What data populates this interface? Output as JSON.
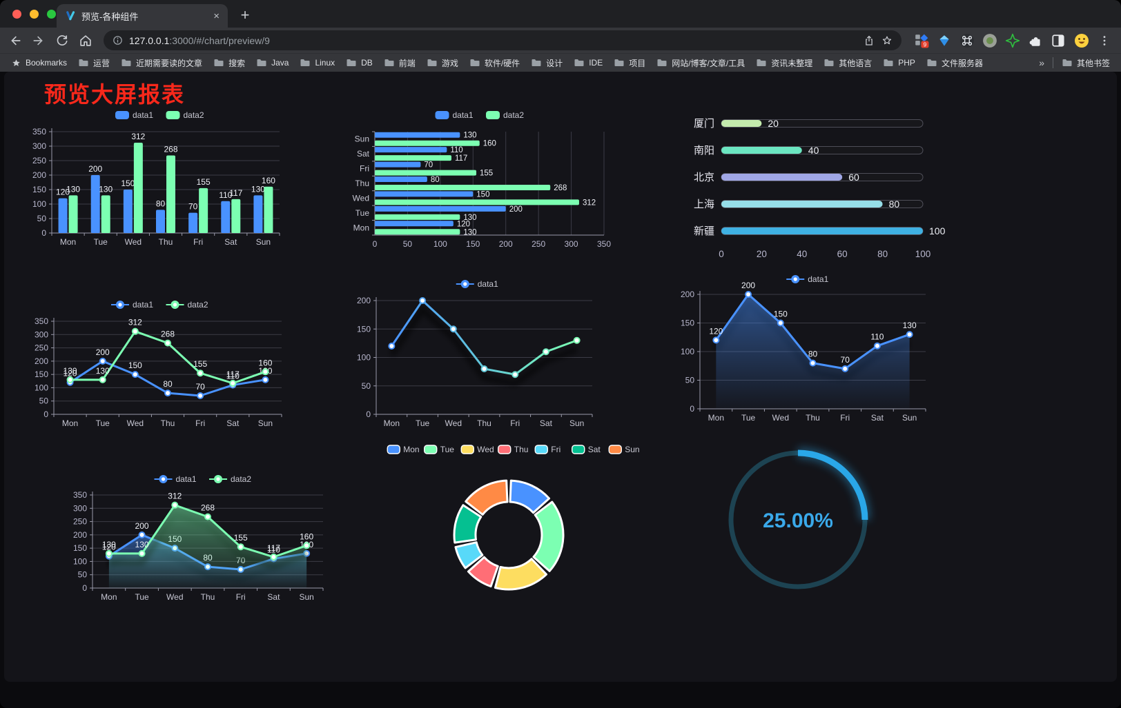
{
  "browser": {
    "tab": {
      "title": "预览-各种组件"
    },
    "url": {
      "host": "127.0.0.1",
      "rest": ":3000/#/chart/preview/9"
    },
    "new_tab_label": "+",
    "close_label": "×",
    "extension_badge": "9",
    "bookmarks_bar": {
      "root_label": "Bookmarks",
      "folders": [
        "运营",
        "近期需要读的文章",
        "搜索",
        "Java",
        "Linux",
        "DB",
        "前端",
        "游戏",
        "软件/硬件",
        "设计",
        "IDE",
        "项目",
        "网站/博客/文章/工具",
        "资讯未整理",
        "其他语言",
        "PHP",
        "文件服务器"
      ],
      "overflow": "»",
      "other": "其他书签"
    }
  },
  "page": {
    "title": "预览大屏报表",
    "title_color": "#f8281b"
  },
  "chart_data": [
    {
      "id": "grouped-bar",
      "type": "bar",
      "legend_position": "top",
      "categories": [
        "Mon",
        "Tue",
        "Wed",
        "Thu",
        "Fri",
        "Sat",
        "Sun"
      ],
      "series": [
        {
          "name": "data1",
          "color": "#4992ff",
          "values": [
            120,
            200,
            150,
            80,
            70,
            110,
            130
          ]
        },
        {
          "name": "data2",
          "color": "#7cffb2",
          "values": [
            130,
            130,
            312,
            268,
            155,
            117,
            160
          ]
        }
      ],
      "ylim": [
        0,
        350
      ],
      "ytick_step": 50,
      "grid": true,
      "value_labels": true
    },
    {
      "id": "horizontal-bar",
      "type": "bar",
      "orientation": "horizontal",
      "legend_position": "top",
      "categories": [
        "Mon",
        "Tue",
        "Wed",
        "Thu",
        "Fri",
        "Sat",
        "Sun"
      ],
      "series": [
        {
          "name": "data1",
          "color": "#4992ff",
          "values": [
            120,
            200,
            150,
            80,
            70,
            110,
            130
          ]
        },
        {
          "name": "data2",
          "color": "#7cffb2",
          "values": [
            130,
            130,
            312,
            268,
            155,
            117,
            160
          ]
        }
      ],
      "xlim": [
        0,
        350
      ],
      "xtick_step": 50,
      "grid": true,
      "value_labels": true
    },
    {
      "id": "progress-bars",
      "type": "bar",
      "variant": "progress",
      "max": 100,
      "items": [
        {
          "label": "厦门",
          "value": 20,
          "color": "#c4ebad"
        },
        {
          "label": "南阳",
          "value": 40,
          "color": "#6be6c1"
        },
        {
          "label": "北京",
          "value": 60,
          "color": "#a0a7e6"
        },
        {
          "label": "上海",
          "value": 80,
          "color": "#96dee8"
        },
        {
          "label": "新疆",
          "value": 100,
          "color": "#3fb1e3"
        }
      ],
      "xticks": [
        0,
        20,
        40,
        60,
        80,
        100
      ],
      "value_labels": true
    },
    {
      "id": "line-two-series",
      "type": "line",
      "legend_position": "top",
      "categories": [
        "Mon",
        "Tue",
        "Wed",
        "Thu",
        "Fri",
        "Sat",
        "Sun"
      ],
      "series": [
        {
          "name": "data1",
          "color": "#4992ff",
          "values": [
            120,
            200,
            150,
            80,
            70,
            110,
            130
          ]
        },
        {
          "name": "data2",
          "color": "#7cffb2",
          "values": [
            130,
            130,
            312,
            268,
            155,
            117,
            160
          ]
        }
      ],
      "ylim": [
        0,
        350
      ],
      "ytick_step": 50,
      "grid": true,
      "value_labels": true,
      "markers": true
    },
    {
      "id": "gradient-line",
      "type": "line",
      "legend_position": "top",
      "categories": [
        "Mon",
        "Tue",
        "Wed",
        "Thu",
        "Fri",
        "Sat",
        "Sun"
      ],
      "series": [
        {
          "name": "data1",
          "gradient": [
            "#4992ff",
            "#7cffb2"
          ],
          "values": [
            120,
            200,
            150,
            80,
            70,
            110,
            130
          ]
        }
      ],
      "ylim": [
        0,
        200
      ],
      "ytick_step": 50,
      "grid": true,
      "value_labels": false,
      "markers": true,
      "shadow": true
    },
    {
      "id": "area-line",
      "type": "area",
      "legend_position": "top",
      "categories": [
        "Mon",
        "Tue",
        "Wed",
        "Thu",
        "Fri",
        "Sat",
        "Sun"
      ],
      "series": [
        {
          "name": "data1",
          "color": "#4992ff",
          "values": [
            120,
            200,
            150,
            80,
            70,
            110,
            130
          ],
          "area": true
        }
      ],
      "ylim": [
        0,
        200
      ],
      "ytick_step": 50,
      "grid": true,
      "value_labels": true,
      "markers": true,
      "shadow": true
    },
    {
      "id": "two-series-area",
      "type": "area",
      "legend_position": "top",
      "categories": [
        "Mon",
        "Tue",
        "Wed",
        "Thu",
        "Fri",
        "Sat",
        "Sun"
      ],
      "series": [
        {
          "name": "data1",
          "color": "#4992ff",
          "values": [
            120,
            200,
            150,
            80,
            70,
            110,
            130
          ],
          "area": true
        },
        {
          "name": "data2",
          "color": "#7cffb2",
          "values": [
            130,
            130,
            312,
            268,
            155,
            117,
            160
          ],
          "area": true
        }
      ],
      "ylim": [
        0,
        350
      ],
      "ytick_step": 50,
      "grid": true,
      "value_labels": true,
      "markers": true,
      "shadow": true
    },
    {
      "id": "donut",
      "type": "pie",
      "legend_position": "top",
      "inner_radius_ratio": 0.61,
      "items": [
        {
          "label": "Mon",
          "value": 120,
          "color": "#4992ff"
        },
        {
          "label": "Tue",
          "value": 200,
          "color": "#7cffb2"
        },
        {
          "label": "Wed",
          "value": 150,
          "color": "#fddd60"
        },
        {
          "label": "Thu",
          "value": 80,
          "color": "#ff6e76"
        },
        {
          "label": "Fri",
          "value": 70,
          "color": "#58d9f9"
        },
        {
          "label": "Sat",
          "value": 110,
          "color": "#05c091"
        },
        {
          "label": "Sun",
          "value": 130,
          "color": "#ff8a45"
        }
      ]
    },
    {
      "id": "gauge",
      "type": "gauge",
      "value": 25,
      "max": 100,
      "display": "25.00%",
      "color": "#2aa7e8",
      "track_color": "#1d4352"
    }
  ]
}
